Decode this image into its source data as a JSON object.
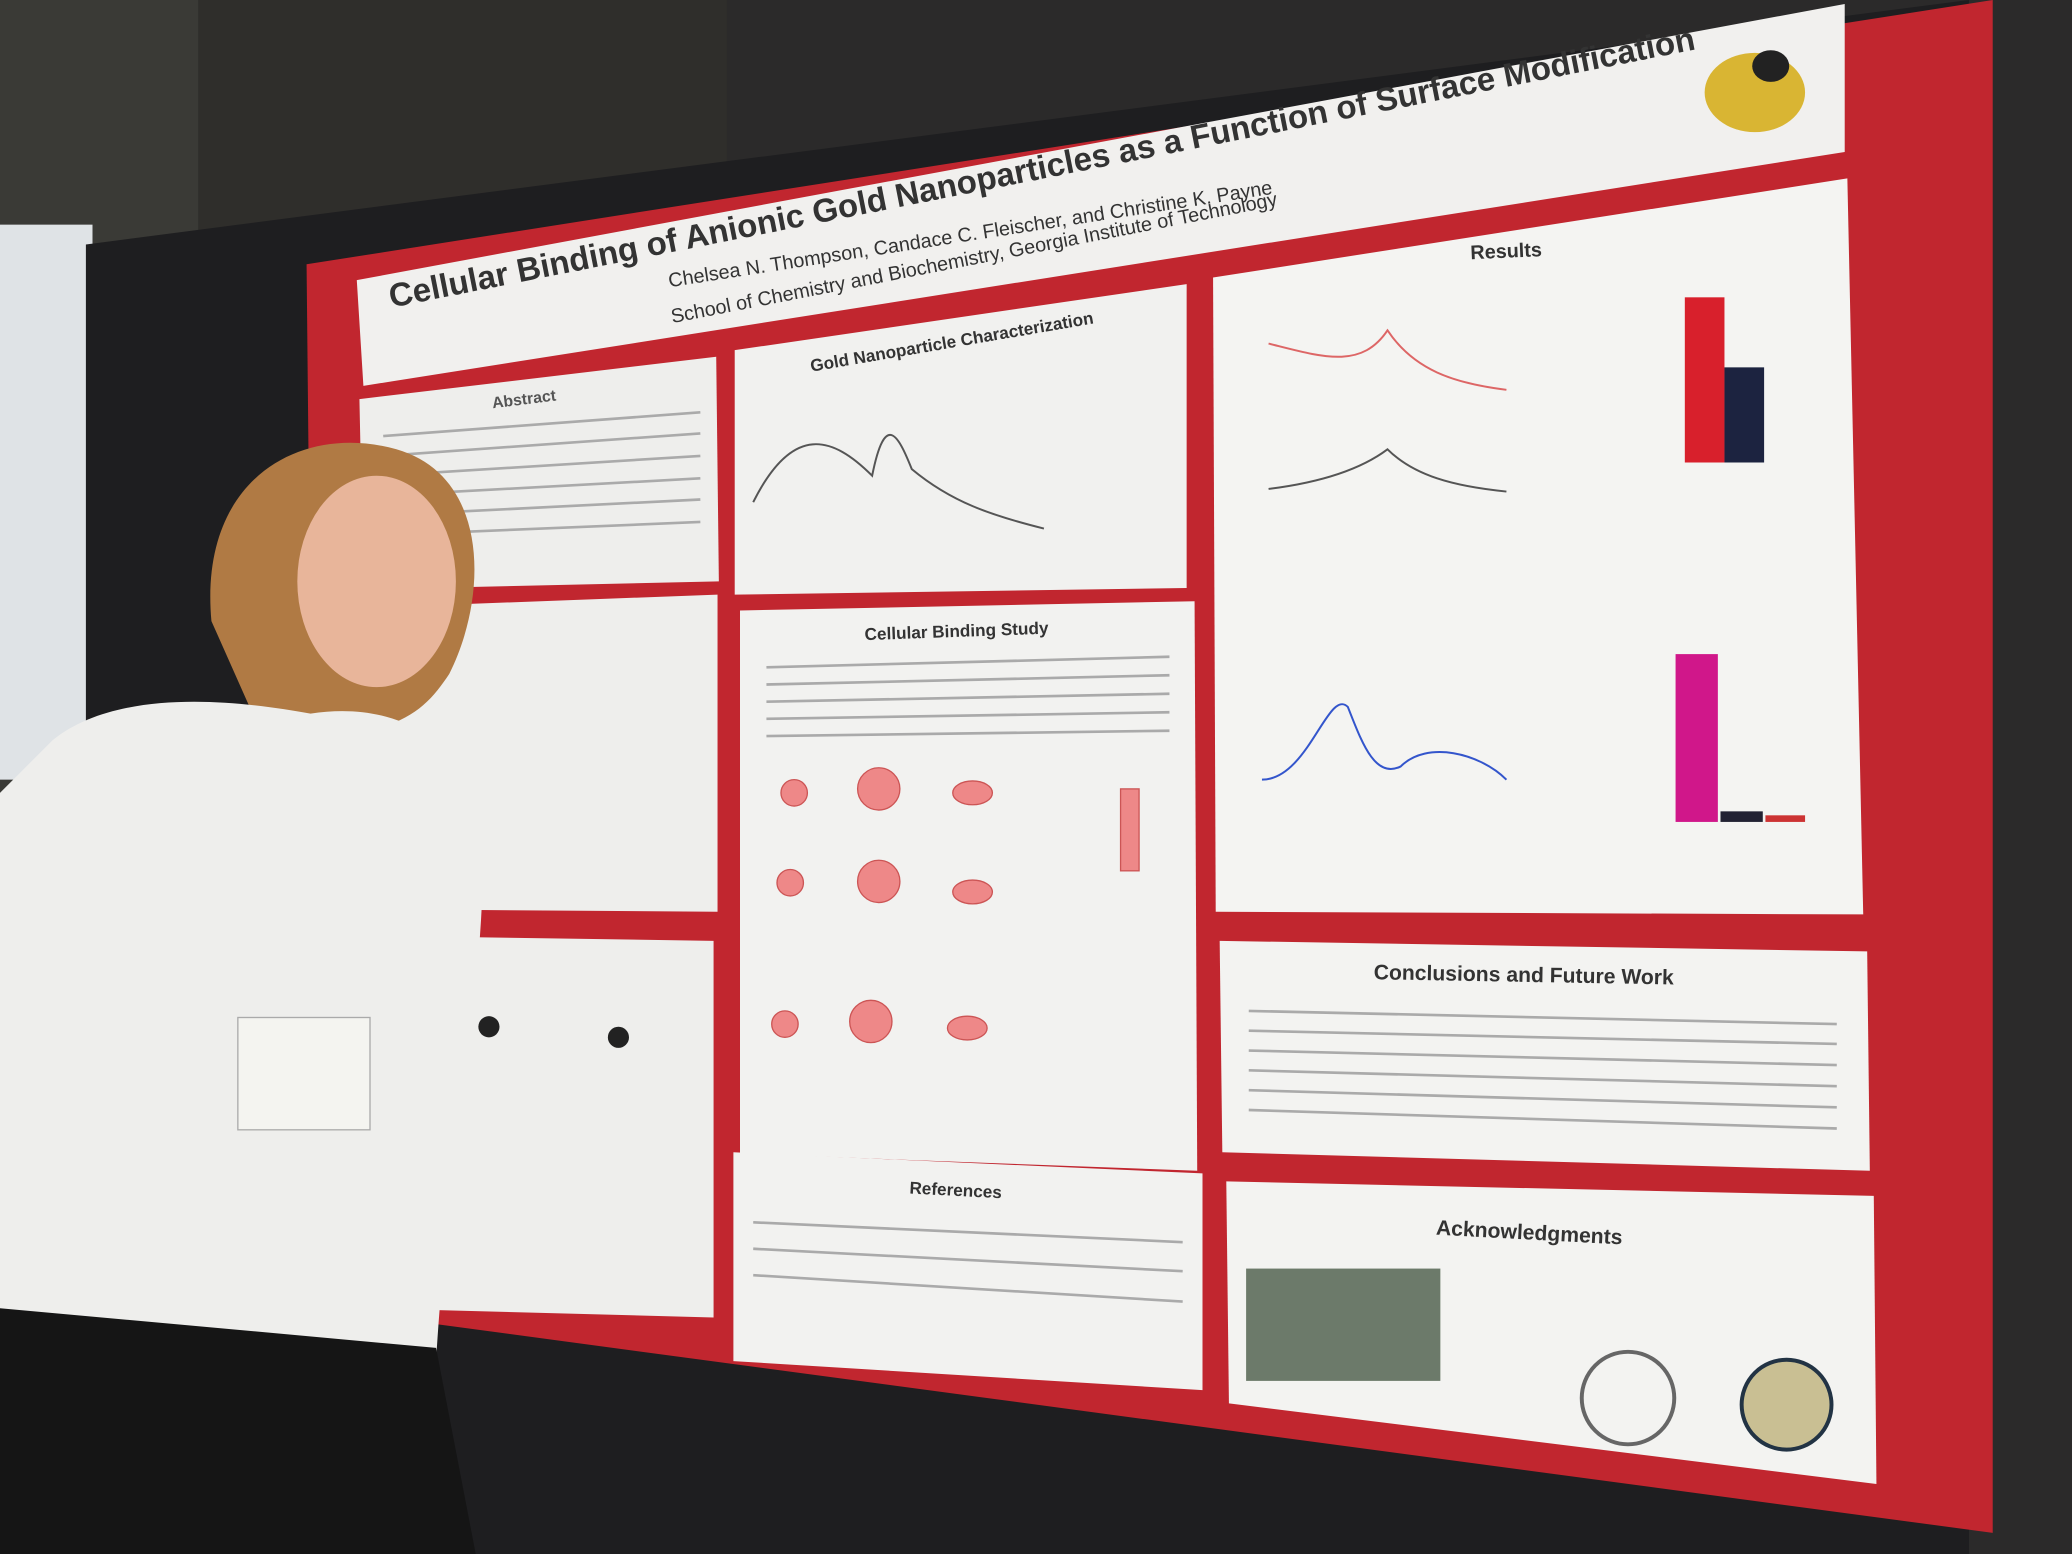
{
  "poster": {
    "title": "Cellular Binding of Anionic Gold Nanoparticles as a Function of Surface Modification",
    "authors": "Chelsea N. Thompson, Candace C. Fleischer, and Christine K. Payne",
    "affiliation": "School of Chemistry and Biochemistry, Georgia Institute of Technology",
    "sections": {
      "abstract": "Abstract",
      "characterization": "Gold Nanoparticle Characterization",
      "binding_study": "Cellular Binding Study",
      "results": "Results",
      "conclusions": "Conclusions and Future Work",
      "references": "References",
      "acknowledgments": "Acknowledgments"
    }
  }
}
